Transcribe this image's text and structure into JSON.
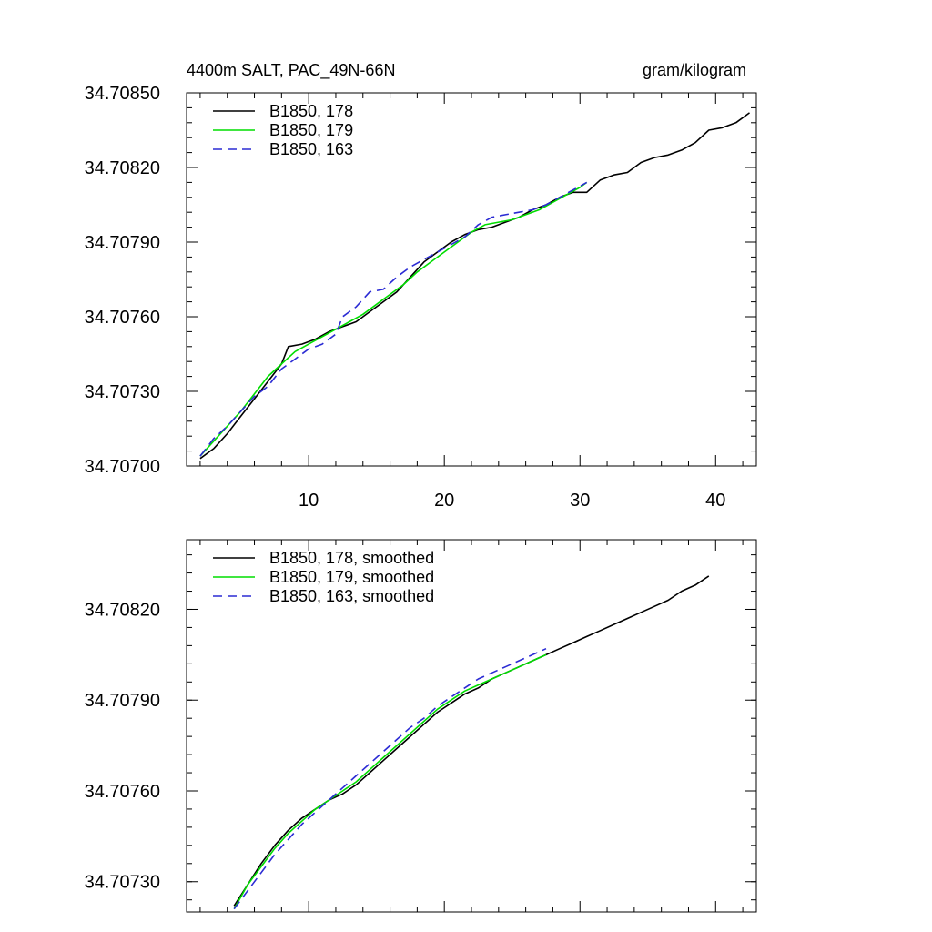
{
  "chart_data": [
    {
      "type": "line",
      "title": "4400m SALT, PAC_49N-66N",
      "units": "gram/kilogram",
      "xlabel": "",
      "ylabel": "",
      "xlim": [
        1,
        43
      ],
      "ylim": [
        34.707,
        34.7085
      ],
      "x_ticks": [
        10,
        20,
        30,
        40
      ],
      "x_tick_labels": [
        "10",
        "20",
        "30",
        "40"
      ],
      "y_ticks": [
        34.707,
        34.7073,
        34.7076,
        34.7079,
        34.7082,
        34.7085
      ],
      "y_tick_labels": [
        "34.70700",
        "34.70730",
        "34.70760",
        "34.70790",
        "34.70820",
        "34.70850"
      ],
      "grid": false,
      "legend_position": "top-left",
      "series": [
        {
          "name": "B1850, 178",
          "color": "#000000",
          "dash": "solid",
          "points": [
            [
              2,
              34.70703
            ],
            [
              3,
              34.70707
            ],
            [
              4,
              34.70713
            ],
            [
              5,
              34.7072
            ],
            [
              6,
              34.70727
            ],
            [
              7,
              34.70734
            ],
            [
              8,
              34.70741
            ],
            [
              8.5,
              34.70748
            ],
            [
              9.5,
              34.70749
            ],
            [
              10.5,
              34.70751
            ],
            [
              11.5,
              34.70754
            ],
            [
              12.5,
              34.70756
            ],
            [
              13.5,
              34.70758
            ],
            [
              14.5,
              34.70762
            ],
            [
              15.5,
              34.70766
            ],
            [
              16.5,
              34.7077
            ],
            [
              17.5,
              34.70776
            ],
            [
              18.5,
              34.70782
            ],
            [
              19.5,
              34.70786
            ],
            [
              20.5,
              34.7079
            ],
            [
              21.5,
              34.70793
            ],
            [
              22.5,
              34.70795
            ],
            [
              23.5,
              34.70796
            ],
            [
              24.5,
              34.70798
            ],
            [
              25.5,
              34.708
            ],
            [
              26.5,
              34.70803
            ],
            [
              27.5,
              34.70805
            ],
            [
              28.5,
              34.70808
            ],
            [
              29.5,
              34.7081
            ],
            [
              30.5,
              34.7081
            ],
            [
              31.5,
              34.70815
            ],
            [
              32.5,
              34.70817
            ],
            [
              33.5,
              34.70818
            ],
            [
              34.5,
              34.70822
            ],
            [
              35.5,
              34.70824
            ],
            [
              36.5,
              34.70825
            ],
            [
              37.5,
              34.70827
            ],
            [
              38.5,
              34.7083
            ],
            [
              39.5,
              34.70835
            ],
            [
              40.5,
              34.70836
            ],
            [
              41.5,
              34.70838
            ],
            [
              42.5,
              34.70842
            ]
          ]
        },
        {
          "name": "B1850, 179",
          "color": "#00dd00",
          "dash": "solid",
          "points": [
            [
              2,
              34.70704
            ],
            [
              3,
              34.7071
            ],
            [
              4,
              34.70716
            ],
            [
              5,
              34.70722
            ],
            [
              6,
              34.70729
            ],
            [
              7,
              34.70736
            ],
            [
              8,
              34.70741
            ],
            [
              9,
              34.70746
            ],
            [
              10,
              34.70749
            ],
            [
              11,
              34.70752
            ],
            [
              12,
              34.70755
            ],
            [
              13,
              34.70758
            ],
            [
              14,
              34.70761
            ],
            [
              15,
              34.70765
            ],
            [
              16,
              34.70769
            ],
            [
              17,
              34.70773
            ],
            [
              18,
              34.70778
            ],
            [
              19,
              34.70782
            ],
            [
              20,
              34.70786
            ],
            [
              21,
              34.7079
            ],
            [
              22,
              34.70794
            ],
            [
              23,
              34.70797
            ],
            [
              24,
              34.70798
            ],
            [
              25,
              34.70799
            ],
            [
              26,
              34.70801
            ],
            [
              27,
              34.70803
            ],
            [
              28,
              34.70806
            ],
            [
              29,
              34.70809
            ],
            [
              30,
              34.70812
            ],
            [
              30.5,
              34.70814
            ]
          ]
        },
        {
          "name": "B1850, 163",
          "color": "#2b2bd4",
          "dash": "dashed",
          "points": [
            [
              2,
              34.70704
            ],
            [
              3,
              34.70711
            ],
            [
              4,
              34.70716
            ],
            [
              5,
              34.70722
            ],
            [
              6,
              34.70728
            ],
            [
              7,
              34.70732
            ],
            [
              8,
              34.70739
            ],
            [
              9,
              34.70743
            ],
            [
              10,
              34.70747
            ],
            [
              11,
              34.70749
            ],
            [
              12,
              34.70753
            ],
            [
              12.5,
              34.7076
            ],
            [
              13.5,
              34.70764
            ],
            [
              14.5,
              34.7077
            ],
            [
              15.5,
              34.70771
            ],
            [
              16.5,
              34.70776
            ],
            [
              17.5,
              34.7078
            ],
            [
              18.5,
              34.70783
            ],
            [
              19.5,
              34.70786
            ],
            [
              20.5,
              34.70789
            ],
            [
              21.5,
              34.70792
            ],
            [
              22.5,
              34.70797
            ],
            [
              23.5,
              34.708
            ],
            [
              24.5,
              34.70801
            ],
            [
              25.5,
              34.70802
            ],
            [
              26.5,
              34.70803
            ],
            [
              27.5,
              34.70805
            ],
            [
              28.5,
              34.70808
            ],
            [
              29.5,
              34.70811
            ],
            [
              30.5,
              34.70814
            ]
          ]
        }
      ]
    },
    {
      "type": "line",
      "title": "",
      "xlabel": "",
      "ylabel": "",
      "xlim": [
        1,
        43
      ],
      "ylim": [
        34.7072,
        34.70843
      ],
      "x_ticks": [
        10,
        20,
        30,
        40
      ],
      "x_tick_labels": [],
      "y_ticks": [
        34.7073,
        34.7076,
        34.7079,
        34.7082
      ],
      "y_tick_labels": [
        "34.70730",
        "34.70760",
        "34.70790",
        "34.70820"
      ],
      "grid": false,
      "legend_position": "top-left",
      "series": [
        {
          "name": "B1850, 178, smoothed",
          "color": "#000000",
          "dash": "solid",
          "points": [
            [
              4.5,
              34.70722
            ],
            [
              5.5,
              34.70729
            ],
            [
              6.5,
              34.70736
            ],
            [
              7.5,
              34.70742
            ],
            [
              8.5,
              34.70747
            ],
            [
              9.5,
              34.70751
            ],
            [
              10.5,
              34.70754
            ],
            [
              11.5,
              34.70757
            ],
            [
              12.5,
              34.70759
            ],
            [
              13.5,
              34.70762
            ],
            [
              14.5,
              34.70766
            ],
            [
              15.5,
              34.7077
            ],
            [
              16.5,
              34.70774
            ],
            [
              17.5,
              34.70778
            ],
            [
              18.5,
              34.70782
            ],
            [
              19.5,
              34.70786
            ],
            [
              20.5,
              34.70789
            ],
            [
              21.5,
              34.70792
            ],
            [
              22.5,
              34.70794
            ],
            [
              23.5,
              34.70797
            ],
            [
              24.5,
              34.70799
            ],
            [
              25.5,
              34.70801
            ],
            [
              26.5,
              34.70803
            ],
            [
              27.5,
              34.70805
            ],
            [
              28.5,
              34.70807
            ],
            [
              29.5,
              34.70809
            ],
            [
              30.5,
              34.70811
            ],
            [
              31.5,
              34.70813
            ],
            [
              32.5,
              34.70815
            ],
            [
              33.5,
              34.70817
            ],
            [
              34.5,
              34.70819
            ],
            [
              35.5,
              34.70821
            ],
            [
              36.5,
              34.70823
            ],
            [
              37.5,
              34.70826
            ],
            [
              38.5,
              34.70828
            ],
            [
              39.5,
              34.70831
            ]
          ]
        },
        {
          "name": "B1850, 179, smoothed",
          "color": "#00dd00",
          "dash": "solid",
          "points": [
            [
              4.5,
              34.70721
            ],
            [
              5.5,
              34.70729
            ],
            [
              6.5,
              34.70735
            ],
            [
              7.5,
              34.70741
            ],
            [
              8.5,
              34.70746
            ],
            [
              9.5,
              34.7075
            ],
            [
              10.5,
              34.70754
            ],
            [
              11.5,
              34.70757
            ],
            [
              12.5,
              34.7076
            ],
            [
              13.5,
              34.70763
            ],
            [
              14.5,
              34.70767
            ],
            [
              15.5,
              34.70771
            ],
            [
              16.5,
              34.70775
            ],
            [
              17.5,
              34.70779
            ],
            [
              18.5,
              34.70783
            ],
            [
              19.5,
              34.70787
            ],
            [
              20.5,
              34.7079
            ],
            [
              21.5,
              34.70793
            ],
            [
              22.5,
              34.70795
            ],
            [
              23.5,
              34.70797
            ],
            [
              24.5,
              34.70799
            ],
            [
              25.5,
              34.70801
            ],
            [
              26.5,
              34.70803
            ],
            [
              27.5,
              34.70805
            ]
          ]
        },
        {
          "name": "B1850, 163, smoothed",
          "color": "#2b2bd4",
          "dash": "dashed",
          "points": [
            [
              4.5,
              34.70721
            ],
            [
              5.5,
              34.70727
            ],
            [
              6.5,
              34.70733
            ],
            [
              7.5,
              34.70739
            ],
            [
              8.5,
              34.70744
            ],
            [
              9.5,
              34.70749
            ],
            [
              10.5,
              34.70753
            ],
            [
              11.5,
              34.70757
            ],
            [
              12.5,
              34.70761
            ],
            [
              13.5,
              34.70765
            ],
            [
              14.5,
              34.70769
            ],
            [
              15.5,
              34.70773
            ],
            [
              16.5,
              34.70777
            ],
            [
              17.5,
              34.70781
            ],
            [
              18.5,
              34.70784
            ],
            [
              19.5,
              34.70788
            ],
            [
              20.5,
              34.70791
            ],
            [
              21.5,
              34.70794
            ],
            [
              22.5,
              34.70797
            ],
            [
              23.5,
              34.70799
            ],
            [
              24.5,
              34.70801
            ],
            [
              25.5,
              34.70803
            ],
            [
              26.5,
              34.70805
            ],
            [
              27.5,
              34.70807
            ]
          ]
        }
      ]
    }
  ]
}
